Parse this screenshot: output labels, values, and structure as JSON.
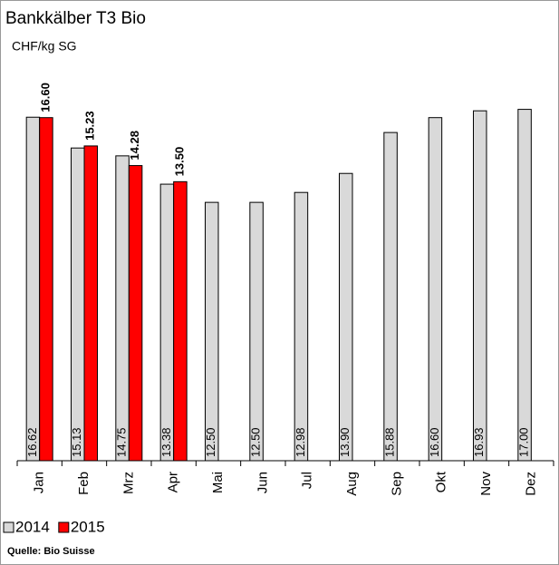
{
  "chart_data": {
    "type": "bar",
    "title": "Bankkälber T3 Bio",
    "y_label": "CHF/kg SG",
    "source": "Quelle: Bio Suisse",
    "categories": [
      "Jan",
      "Feb",
      "Mrz",
      "Apr",
      "Mai",
      "Jun",
      "Jul",
      "Aug",
      "Sep",
      "Okt",
      "Nov",
      "Dez"
    ],
    "series": [
      {
        "name": "2014",
        "color": "#d9d9d9",
        "values": [
          16.62,
          15.13,
          14.75,
          13.38,
          12.5,
          12.5,
          12.98,
          13.9,
          15.88,
          16.6,
          16.93,
          17.0
        ],
        "value_labels": [
          "16.62",
          "15.13",
          "14.75",
          "13.38",
          "12.50",
          "12.50",
          "12.98",
          "13.90",
          "15.88",
          "16.60",
          "16.93",
          "17.00"
        ]
      },
      {
        "name": "2015",
        "color": "#ff0000",
        "values": [
          16.6,
          15.23,
          14.28,
          13.5,
          null,
          null,
          null,
          null,
          null,
          null,
          null,
          null
        ],
        "value_labels": [
          "16.60",
          "15.23",
          "14.28",
          "13.50",
          null,
          null,
          null,
          null,
          null,
          null,
          null,
          null
        ]
      }
    ],
    "ylim": [
      0,
      19
    ]
  }
}
